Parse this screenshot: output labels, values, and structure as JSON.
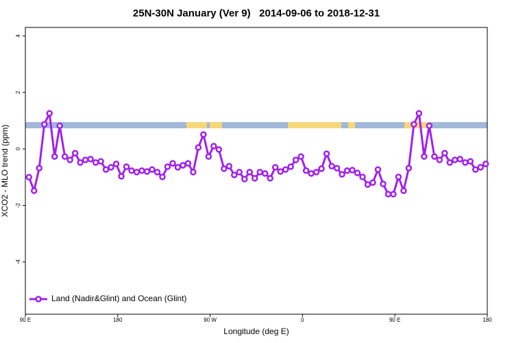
{
  "chart_data": {
    "type": "line",
    "title": "25N-30N January (Ver 9)   2014-09-06 to 2018-12-31",
    "xlabel": "Longitude (deg E)",
    "ylabel": "XCO2 - MLO trend (ppm)",
    "xlim": [
      90,
      540
    ],
    "ylim": [
      -5.85,
      4.3
    ],
    "xticks": [
      {
        "value": 90,
        "label": "90 E"
      },
      180,
      {
        "value": 270,
        "label": "90 W"
      },
      {
        "value": 360,
        "label": "0"
      },
      {
        "value": 450,
        "label": "90 E"
      },
      {
        "value": 540,
        "label": "180"
      }
    ],
    "yticks": [
      -4,
      -2,
      0,
      2,
      4
    ],
    "legend": "bottom-left",
    "x": [
      93.5,
      98.5,
      103.5,
      108.5,
      113.5,
      118.5,
      123.5,
      128.5,
      133.5,
      138.5,
      143.5,
      148.5,
      153.5,
      158.5,
      163.5,
      168.5,
      173.5,
      178.5,
      183.5,
      188.5,
      193.5,
      198.5,
      203.5,
      208.5,
      213.5,
      218.5,
      223.5,
      228.5,
      233.5,
      238.5,
      243.5,
      248.5,
      253.5,
      258.5,
      263.5,
      268.5,
      273.5,
      278.5,
      283.5,
      288.5,
      293.5,
      298.5,
      303.5,
      308.5,
      313.5,
      318.5,
      323.5,
      328.5,
      333.5,
      338.5,
      343.5,
      348.5,
      353.5,
      358.5,
      363.5,
      368.5,
      373.5,
      378.5,
      383.5,
      388.5,
      393.5,
      398.5,
      403.5,
      408.5,
      413.5,
      418.5,
      423.5,
      428.5,
      433.5,
      438.5,
      443.5,
      448.5,
      453.5,
      458.5,
      463.5,
      468.5,
      473.5,
      478.5,
      483.5,
      488.5,
      493.5,
      498.5,
      503.5,
      508.5,
      513.5,
      518.5,
      523.5,
      528.5,
      533.5,
      538.5
    ],
    "series": [
      {
        "name": "Land (Nadir&Glint) and Ocean (Glint)",
        "color": "#a020f0",
        "values": [
          -1.0,
          -1.48,
          -0.68,
          0.87,
          1.26,
          -0.27,
          0.82,
          -0.27,
          -0.39,
          -0.15,
          -0.48,
          -0.39,
          -0.36,
          -0.48,
          -0.44,
          -0.73,
          -0.65,
          -0.53,
          -0.97,
          -0.63,
          -0.77,
          -0.82,
          -0.77,
          -0.8,
          -0.73,
          -0.82,
          -0.99,
          -0.63,
          -0.51,
          -0.65,
          -0.58,
          -0.51,
          -0.82,
          0.05,
          0.51,
          -0.27,
          0.1,
          -0.02,
          -0.7,
          -0.61,
          -0.92,
          -0.82,
          -1.07,
          -0.82,
          -1.04,
          -0.82,
          -0.87,
          -1.04,
          -0.65,
          -0.8,
          -0.73,
          -0.63,
          -0.39,
          -0.27,
          -0.77,
          -0.87,
          -0.82,
          -0.7,
          -0.17,
          -0.61,
          -0.68,
          -0.9,
          -0.77,
          -0.75,
          -0.85,
          -0.99,
          -1.26,
          -1.19,
          -0.73,
          -1.24,
          -1.6,
          -1.6,
          -0.99,
          -1.48,
          -0.68,
          0.87,
          1.26,
          -0.27,
          0.82,
          -0.27,
          -0.39,
          -0.15,
          -0.48,
          -0.39,
          -0.36,
          -0.48,
          -0.44,
          -0.73,
          -0.65,
          -0.53
        ]
      }
    ]
  }
}
